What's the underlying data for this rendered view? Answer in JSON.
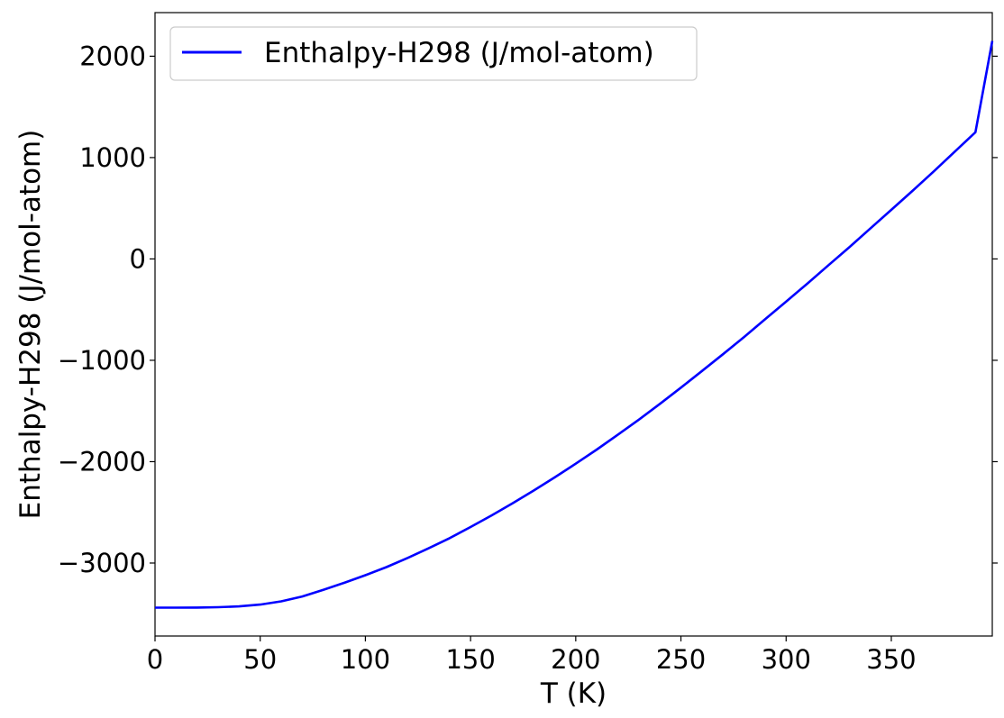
{
  "chart_data": {
    "type": "line",
    "xlabel": "T (K)",
    "ylabel": "Enthalpy-H298 (J/mol-atom)",
    "xlim": [
      0,
      398
    ],
    "ylim": [
      -3720,
      2430
    ],
    "x_ticks": [
      0,
      50,
      100,
      150,
      200,
      250,
      300,
      350
    ],
    "x_tick_labels": [
      "0",
      "50",
      "100",
      "150",
      "200",
      "250",
      "300",
      "350"
    ],
    "y_ticks": [
      -3000,
      -2000,
      -1000,
      0,
      1000,
      2000
    ],
    "y_tick_labels": [
      "−3000",
      "−2000",
      "−1000",
      "0",
      "1000",
      "2000"
    ],
    "grid": false,
    "legend_position": "top-left",
    "series": [
      {
        "name": "Enthalpy-H298 (J/mol-atom)",
        "color": "#0000ff",
        "x": [
          0,
          10,
          20,
          30,
          40,
          50,
          60,
          70,
          80,
          90,
          100,
          110,
          120,
          130,
          140,
          150,
          160,
          170,
          180,
          190,
          200,
          210,
          220,
          230,
          240,
          250,
          260,
          270,
          280,
          290,
          300,
          310,
          320,
          330,
          340,
          350,
          360,
          370,
          380,
          390,
          398
        ],
        "y": [
          -3440,
          -3440,
          -3439,
          -3436,
          -3428,
          -3410,
          -3378,
          -3330,
          -3265,
          -3195,
          -3120,
          -3040,
          -2950,
          -2855,
          -2755,
          -2645,
          -2530,
          -2410,
          -2285,
          -2155,
          -2020,
          -1880,
          -1735,
          -1585,
          -1430,
          -1270,
          -1105,
          -940,
          -770,
          -595,
          -420,
          -245,
          -65,
          115,
          300,
          485,
          670,
          860,
          1055,
          1250,
          2150
        ]
      }
    ]
  }
}
